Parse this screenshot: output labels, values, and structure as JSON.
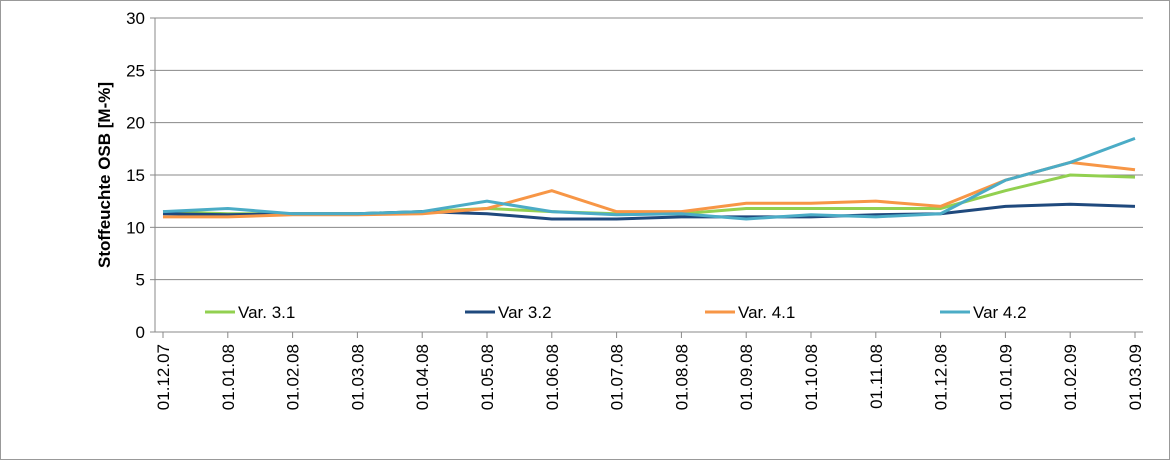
{
  "chart_data": {
    "type": "line",
    "y_label": "Stoffeuchte OSB [M-%]",
    "categories": [
      "01.12.07",
      "01.01.08",
      "01.02.08",
      "01.03.08",
      "01.04.08",
      "01.05.08",
      "01.06.08",
      "01.07.08",
      "01.08.08",
      "01.09.08",
      "01.10.08",
      "01.11.08",
      "01.12.08",
      "01.01.09",
      "01.02.09",
      "01.03.09"
    ],
    "series": [
      {
        "name": "Var. 3.1",
        "color": "#92d050",
        "values": [
          11.5,
          11.3,
          11.3,
          11.3,
          11.5,
          11.8,
          11.5,
          11.3,
          11.3,
          11.8,
          11.8,
          11.8,
          11.8,
          13.5,
          15,
          14.8
        ]
      },
      {
        "name": "Var 3.2",
        "color": "#1f497d",
        "values": [
          11.3,
          11.2,
          11.3,
          11.3,
          11.5,
          11.3,
          10.8,
          10.8,
          11,
          11,
          11,
          11.2,
          11.3,
          12,
          12.2,
          12
        ]
      },
      {
        "name": "Var. 4.1",
        "color": "#f79646",
        "values": [
          11,
          11,
          11.2,
          11.2,
          11.3,
          11.8,
          13.5,
          11.5,
          11.5,
          12.3,
          12.3,
          12.5,
          12,
          14.5,
          16.2,
          15.5
        ]
      },
      {
        "name": "Var 4.2",
        "color": "#4bacc6",
        "values": [
          11.5,
          11.8,
          11.3,
          11.3,
          11.5,
          12.5,
          11.5,
          11.2,
          11.3,
          10.8,
          11.2,
          11,
          11.3,
          14.5,
          16.2,
          18.5
        ]
      }
    ],
    "ylim": [
      0,
      30
    ],
    "yticks": [
      0,
      5,
      10,
      15,
      20,
      25,
      30
    ],
    "grid": true
  }
}
